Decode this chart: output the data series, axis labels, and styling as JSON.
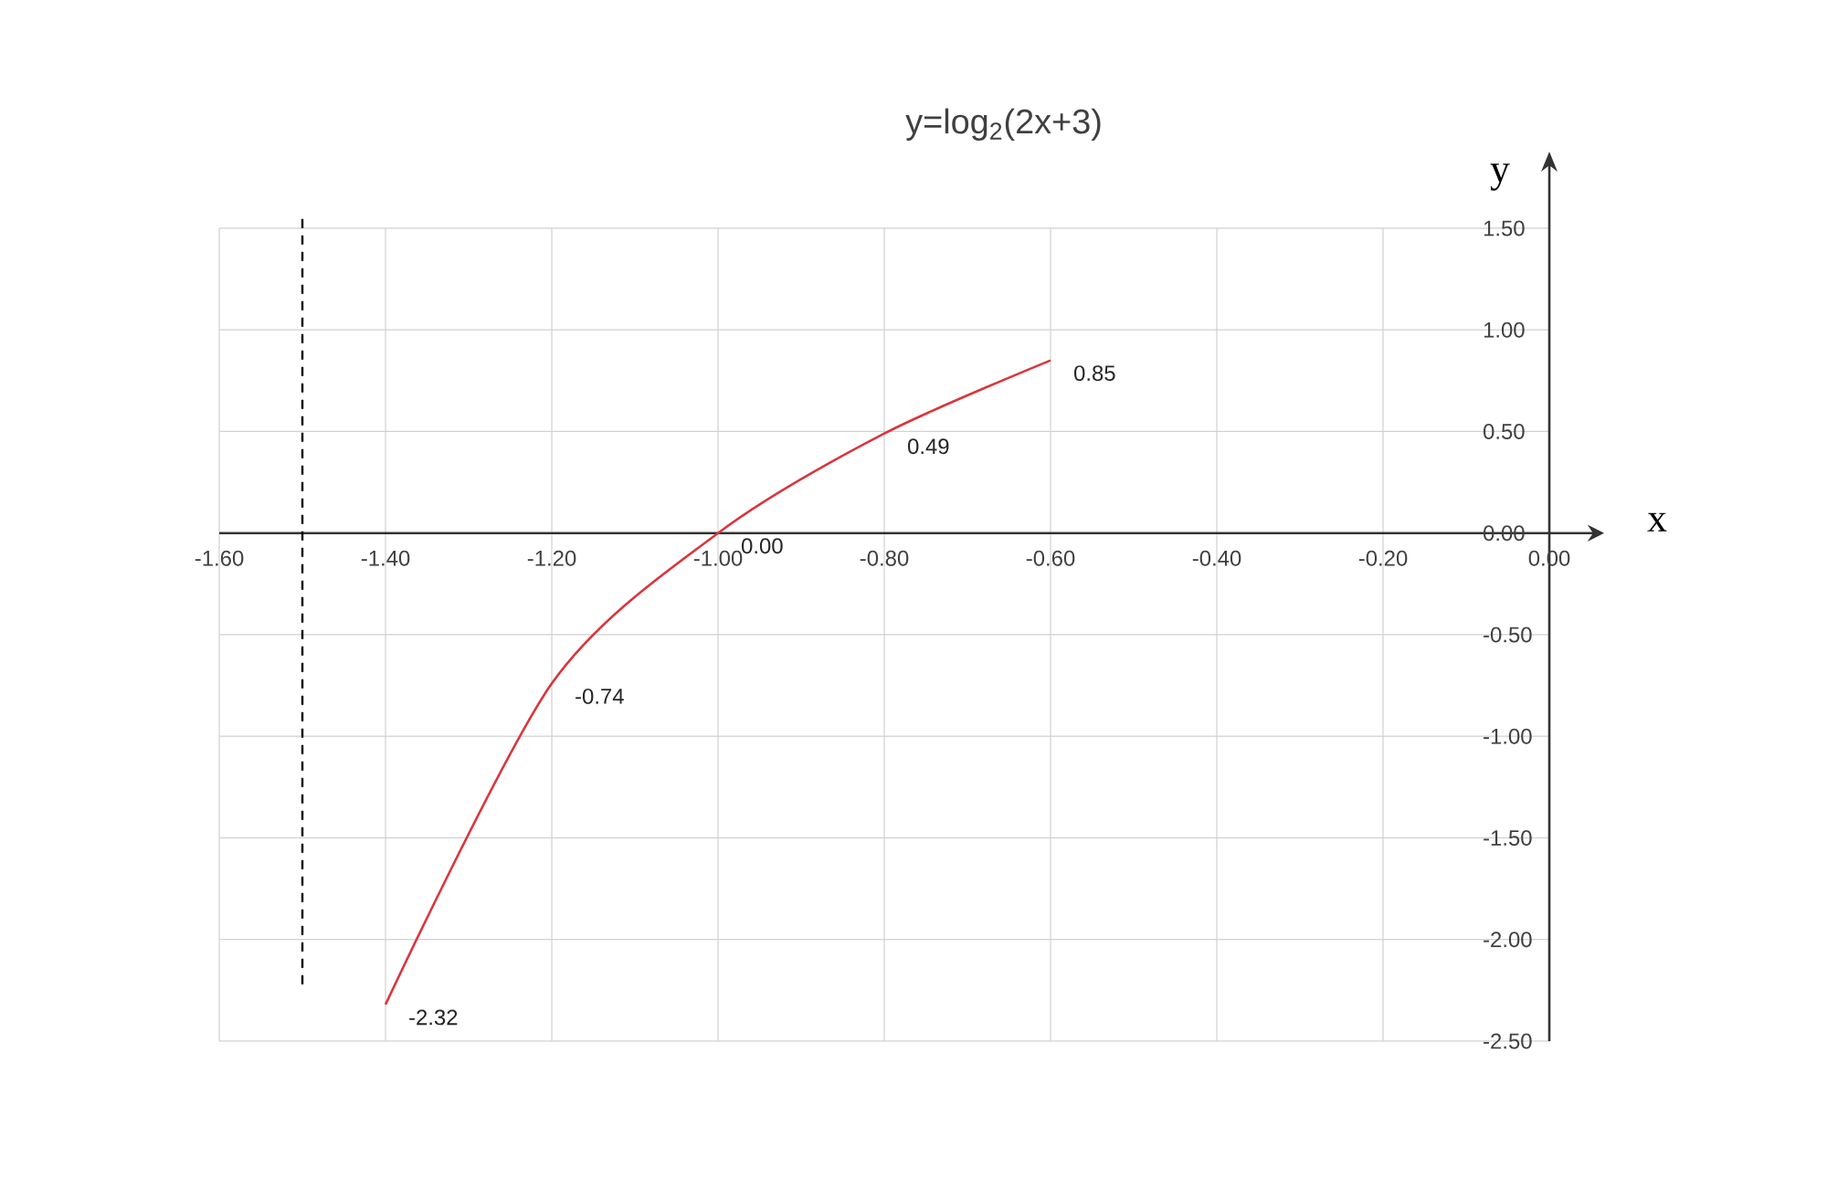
{
  "chart_data": {
    "type": "line",
    "title": "y=log$_{2}$(2x+3)",
    "xlabel": "x",
    "ylabel": "y",
    "x": [
      -1.4,
      -1.2,
      -1.0,
      -0.8,
      -0.6
    ],
    "series": [
      {
        "color": "#d9363e",
        "values": [
          -2.32,
          -0.74,
          0.0,
          0.49,
          0.85
        ],
        "value_labels": [
          "-2.32",
          "-0.74",
          "0.00",
          "0.49",
          "0.85"
        ]
      }
    ],
    "xlim": [
      -1.6,
      0.0
    ],
    "ylim": [
      -2.5,
      1.5
    ],
    "xticks": [
      {
        "value": -1.6,
        "label": "-1.60"
      },
      {
        "value": -1.4,
        "label": "-1.40"
      },
      {
        "value": -1.2,
        "label": "-1.20"
      },
      {
        "value": -1.0,
        "label": "-1.00"
      },
      {
        "value": -0.8,
        "label": "-0.80"
      },
      {
        "value": -0.6,
        "label": "-0.60"
      },
      {
        "value": -0.4,
        "label": "-0.40"
      },
      {
        "value": -0.2,
        "label": "-0.20"
      },
      {
        "value": 0.0,
        "label": "0.00"
      }
    ],
    "yticks": [
      {
        "value": -2.5,
        "label": "-2.50"
      },
      {
        "value": -2.0,
        "label": "-2.00"
      },
      {
        "value": -1.5,
        "label": "-1.50"
      },
      {
        "value": -1.0,
        "label": "-1.00"
      },
      {
        "value": -0.5,
        "label": "-0.50"
      },
      {
        "value": 0.0,
        "label": "0.00"
      },
      {
        "value": 0.5,
        "label": "0.50"
      },
      {
        "value": 1.0,
        "label": "1.00"
      },
      {
        "value": 1.5,
        "label": "1.50"
      }
    ],
    "ref_lines": [
      {
        "axis": "x",
        "value": -1.5,
        "color": "#000000",
        "line_style": "dashed"
      }
    ],
    "grid": true,
    "line_style": "solid",
    "marker": "none"
  }
}
